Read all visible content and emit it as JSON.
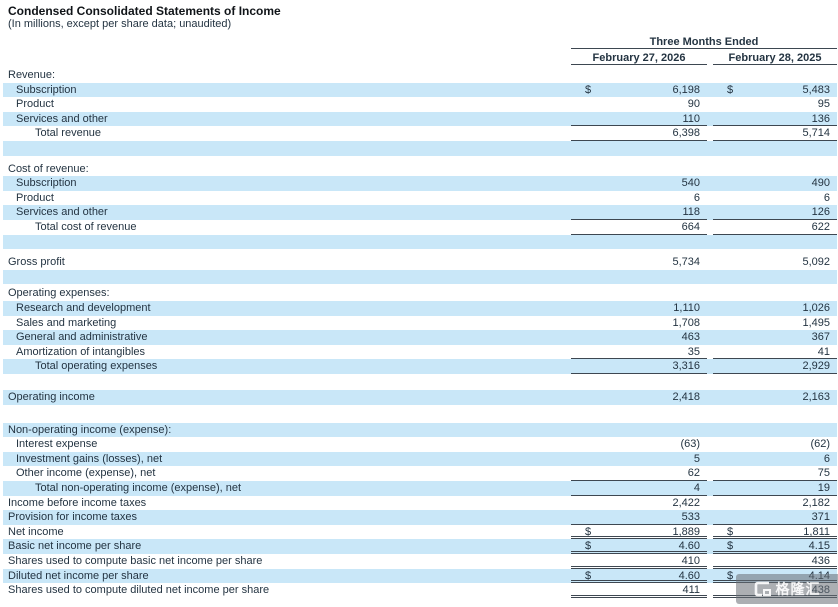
{
  "header": {
    "title": "Condensed Consolidated Statements of Income",
    "subtitle": "(In millions, except per share data; unaudited)"
  },
  "table": {
    "period_header": "Three Months Ended",
    "columns": [
      "February 27, 2026",
      "February 28, 2025"
    ],
    "currency_symbol": "$",
    "rows": [
      {
        "type": "section",
        "label": "Revenue:",
        "bg": "white",
        "indent": 0
      },
      {
        "type": "data",
        "label": "Subscription",
        "indent": 1,
        "bg": "blue",
        "dollar": true,
        "v2026": "6,198",
        "v2025": "5,483"
      },
      {
        "type": "data",
        "label": "Product",
        "indent": 1,
        "bg": "white",
        "v2026": "90",
        "v2025": "95"
      },
      {
        "type": "data",
        "label": "Services and other",
        "indent": 1,
        "bg": "blue",
        "v2026": "110",
        "v2025": "136",
        "border": "single"
      },
      {
        "type": "data",
        "label": "Total revenue",
        "indent": 2,
        "bg": "white",
        "v2026": "6,398",
        "v2025": "5,714",
        "border": "single"
      },
      {
        "type": "blank",
        "bg": "blue"
      },
      {
        "type": "spacer",
        "height": 6
      },
      {
        "type": "section",
        "label": "Cost of revenue:",
        "bg": "white",
        "indent": 0
      },
      {
        "type": "data",
        "label": "Subscription",
        "indent": 1,
        "bg": "blue",
        "v2026": "540",
        "v2025": "490"
      },
      {
        "type": "data",
        "label": "Product",
        "indent": 1,
        "bg": "white",
        "v2026": "6",
        "v2025": "6"
      },
      {
        "type": "data",
        "label": "Services and other",
        "indent": 1,
        "bg": "blue",
        "v2026": "118",
        "v2025": "126",
        "border": "single"
      },
      {
        "type": "data",
        "label": "Total cost of revenue",
        "indent": 2,
        "bg": "white",
        "v2026": "664",
        "v2025": "622",
        "border": "single"
      },
      {
        "type": "blank",
        "bg": "blue"
      },
      {
        "type": "spacer",
        "height": 6
      },
      {
        "type": "data",
        "label": "Gross profit",
        "indent": 0,
        "bg": "white",
        "v2026": "5,734",
        "v2025": "5,092"
      },
      {
        "type": "blank",
        "bg": "blue"
      },
      {
        "type": "spacer",
        "height": 2
      },
      {
        "type": "section",
        "label": "Operating expenses:",
        "bg": "white",
        "indent": 0
      },
      {
        "type": "data",
        "label": "Research and development",
        "indent": 1,
        "bg": "blue",
        "v2026": "1,110",
        "v2025": "1,026"
      },
      {
        "type": "data",
        "label": "Sales and marketing",
        "indent": 1,
        "bg": "white",
        "v2026": "1,708",
        "v2025": "1,495"
      },
      {
        "type": "data",
        "label": "General and administrative",
        "indent": 1,
        "bg": "blue",
        "v2026": "463",
        "v2025": "367"
      },
      {
        "type": "data",
        "label": "Amortization of intangibles",
        "indent": 1,
        "bg": "white",
        "v2026": "35",
        "v2025": "41",
        "border": "single"
      },
      {
        "type": "data",
        "label": "Total operating expenses",
        "indent": 2,
        "bg": "blue",
        "v2026": "3,316",
        "v2025": "2,929",
        "border": "single"
      },
      {
        "type": "blank",
        "bg": "white"
      },
      {
        "type": "spacer",
        "height": 2
      },
      {
        "type": "data",
        "label": "Operating income",
        "indent": 0,
        "bg": "blue",
        "v2026": "2,418",
        "v2025": "2,163"
      },
      {
        "type": "blank",
        "bg": "white"
      },
      {
        "type": "spacer",
        "height": 3
      },
      {
        "type": "section",
        "label": "Non-operating income (expense):",
        "bg": "blue",
        "indent": 0
      },
      {
        "type": "data",
        "label": "Interest expense",
        "indent": 1,
        "bg": "white",
        "v2026": "(63)",
        "v2025": "(62)"
      },
      {
        "type": "data",
        "label": "Investment gains (losses), net",
        "indent": 1,
        "bg": "blue",
        "v2026": "5",
        "v2025": "6"
      },
      {
        "type": "data",
        "label": "Other income (expense), net",
        "indent": 1,
        "bg": "white",
        "v2026": "62",
        "v2025": "75",
        "border": "single"
      },
      {
        "type": "data",
        "label": "Total non-operating income (expense), net",
        "indent": 2,
        "bg": "blue",
        "v2026": "4",
        "v2025": "19",
        "border": "single"
      },
      {
        "type": "data",
        "label": "Income before income taxes",
        "indent": 0,
        "bg": "white",
        "v2026": "2,422",
        "v2025": "2,182"
      },
      {
        "type": "data",
        "label": "Provision for income taxes",
        "indent": 0,
        "bg": "blue",
        "v2026": "533",
        "v2025": "371",
        "border": "single"
      },
      {
        "type": "data",
        "label": "Net income",
        "indent": 0,
        "bg": "white",
        "dollar": true,
        "v2026": "1,889",
        "v2025": "1,811",
        "border": "double"
      },
      {
        "type": "data",
        "label": "Basic net income per share",
        "indent": 0,
        "bg": "blue",
        "dollar": true,
        "v2026": "4.60",
        "v2025": "4.15",
        "border": "double"
      },
      {
        "type": "data",
        "label": "Shares used to compute basic net income per share",
        "indent": 0,
        "bg": "white",
        "v2026": "410",
        "v2025": "436",
        "border": "double"
      },
      {
        "type": "data",
        "label": "Diluted net income per share",
        "indent": 0,
        "bg": "blue",
        "dollar": true,
        "v2026": "4.60",
        "v2025": "4.14",
        "border": "double"
      },
      {
        "type": "data",
        "label": "Shares used to compute diluted net income per share",
        "indent": 0,
        "bg": "white",
        "v2026": "411",
        "v2025": "438",
        "border": "double"
      }
    ]
  },
  "watermark": {
    "text": "格隆汇"
  },
  "colors": {
    "stripe": "#c9e7f8",
    "line": "#3d4751",
    "text": "#243442",
    "title": "#101418"
  }
}
